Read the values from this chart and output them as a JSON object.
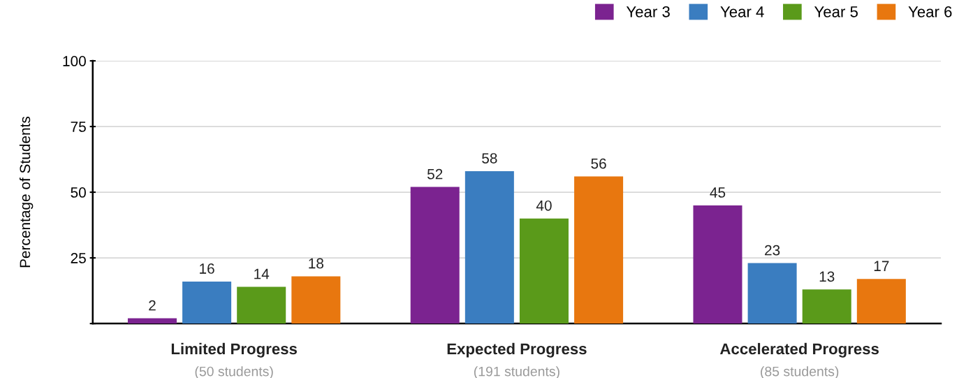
{
  "chart_data": {
    "type": "bar",
    "ylabel": "Percentage of Students",
    "categories": [
      "Limited Progress\n(50 students)",
      "Expected Progress\n(191 students)",
      "Accelerated Progress\n(85 students)"
    ],
    "series": [
      {
        "name": "Year 3",
        "color": "#7b2390",
        "values": [
          2,
          52,
          45
        ]
      },
      {
        "name": "Year 4",
        "color": "#3a7dc0",
        "values": [
          16,
          58,
          23
        ]
      },
      {
        "name": "Year 5",
        "color": "#5a9a1a",
        "values": [
          14,
          40,
          13
        ]
      },
      {
        "name": "Year 6",
        "color": "#e8770f",
        "values": [
          18,
          56,
          17
        ]
      }
    ],
    "ylim": [
      0,
      100
    ],
    "yticks": [
      {
        "value": 0,
        "label": null
      },
      25,
      50,
      75,
      100
    ],
    "grid": "y",
    "legend": "top right",
    "data_labels": true
  }
}
